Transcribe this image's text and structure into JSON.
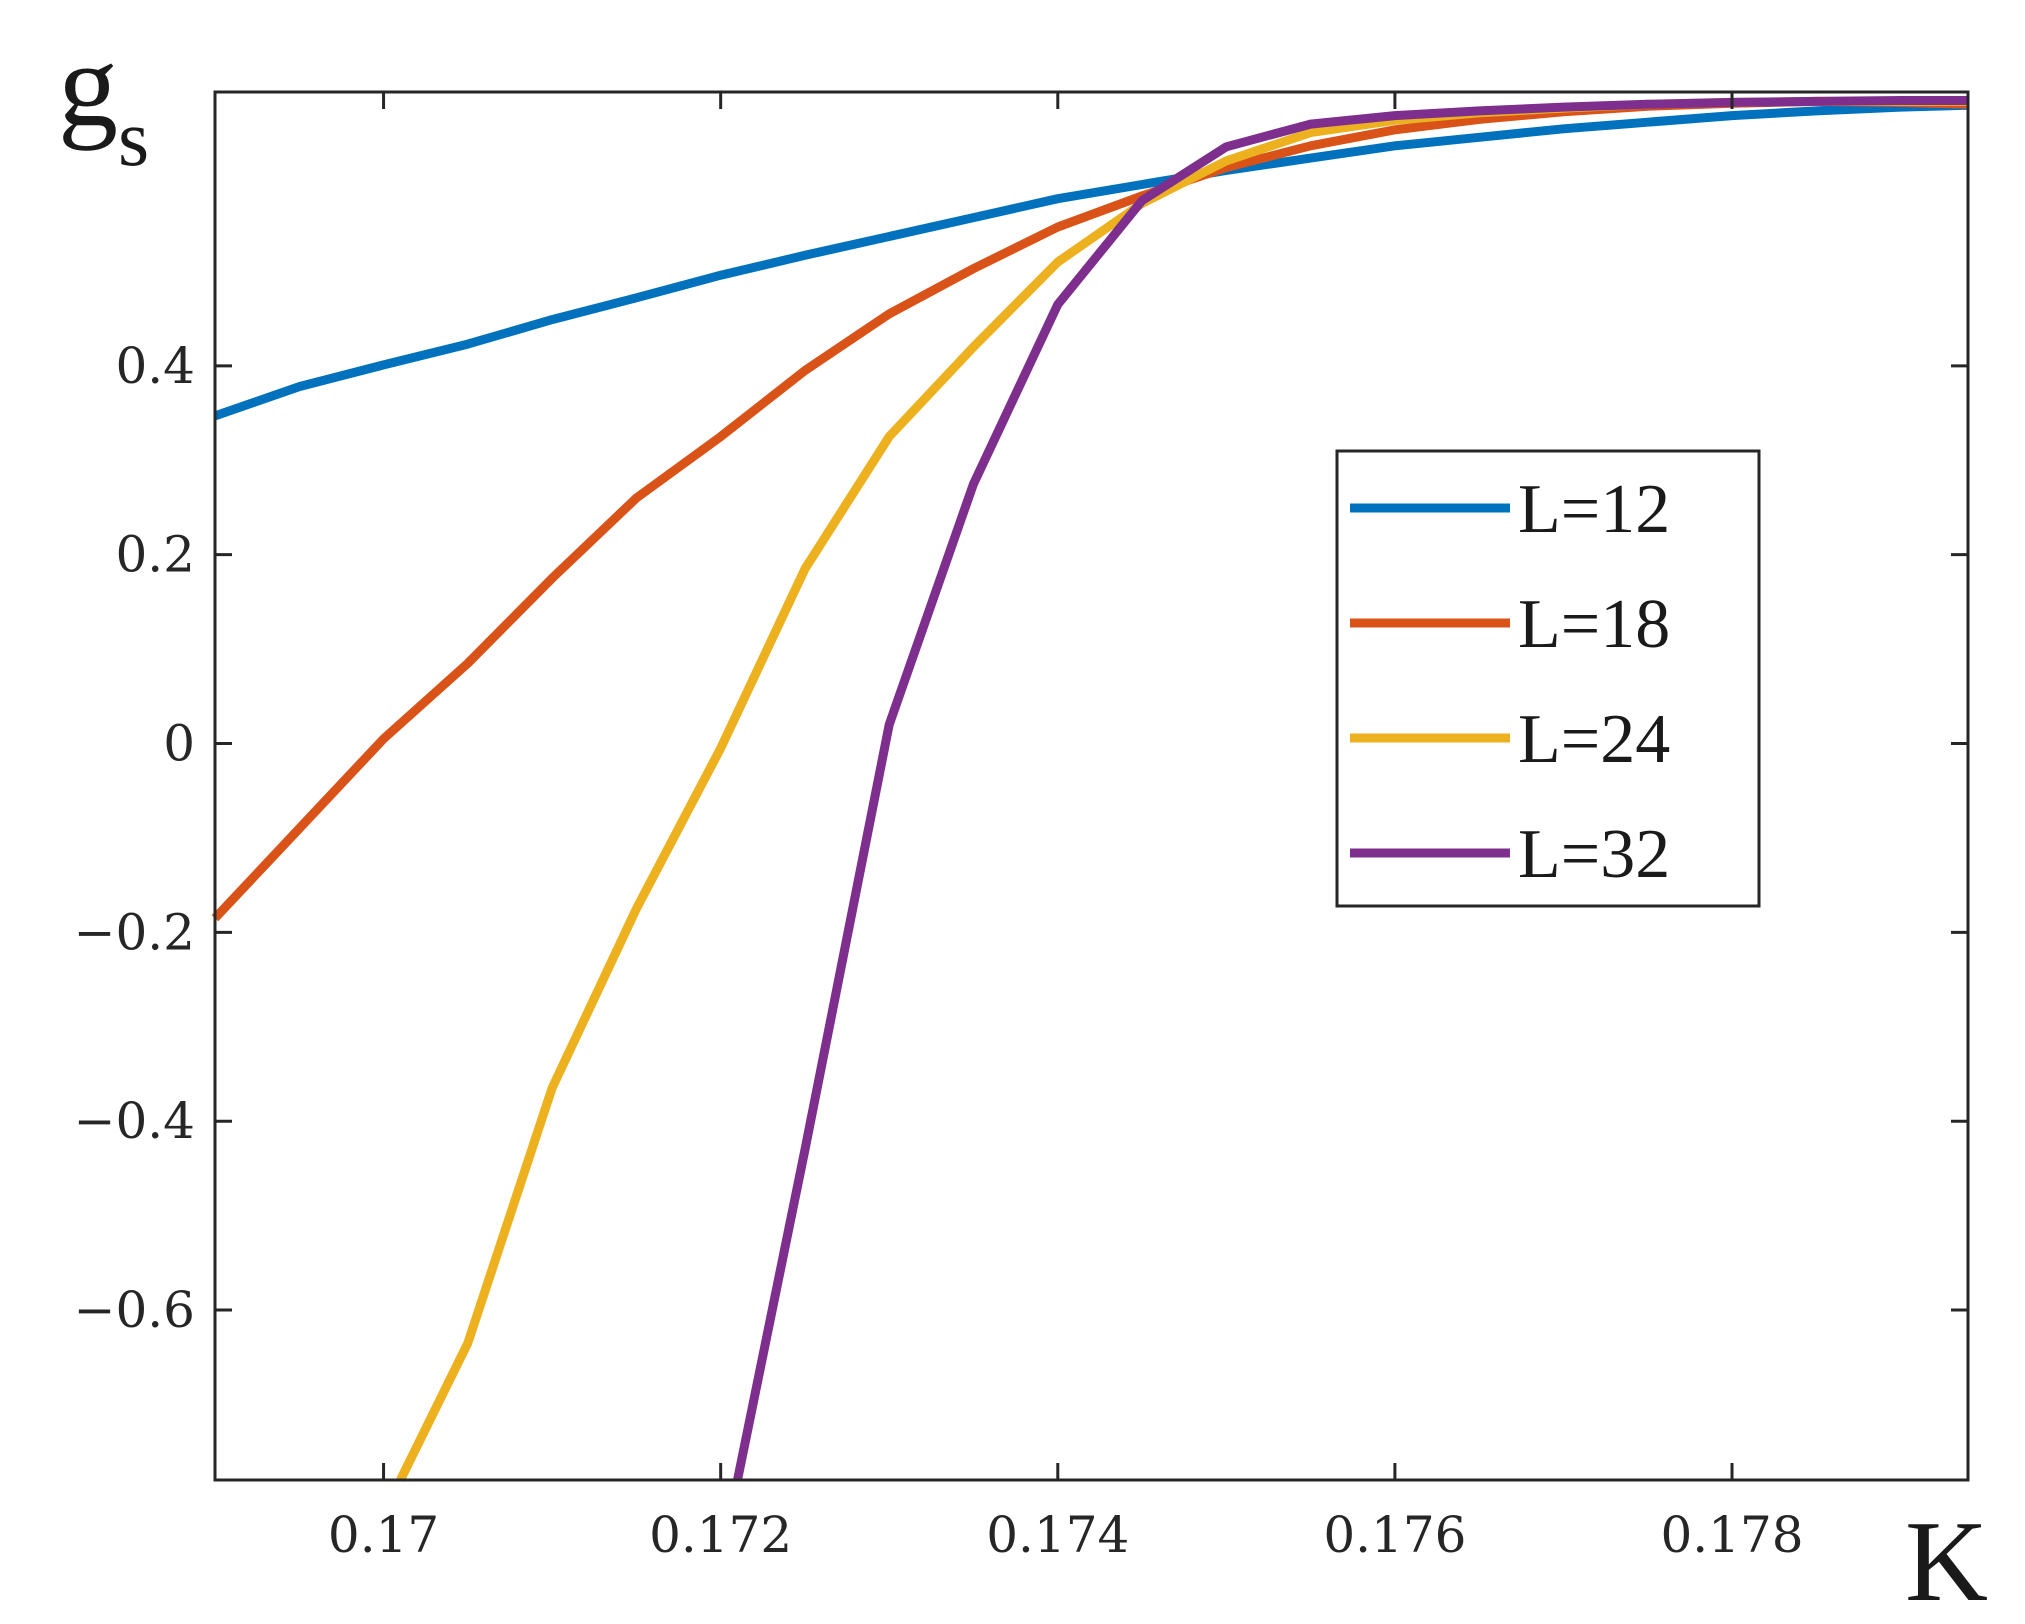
{
  "chart_data": {
    "type": "line",
    "xlabel": "K",
    "ylabel_main": "g",
    "ylabel_sub": "s",
    "xlim": [
      0.169,
      0.1794
    ],
    "ylim": [
      -0.78,
      0.69
    ],
    "xticks": [
      0.17,
      0.172,
      0.174,
      0.176,
      0.178
    ],
    "xtick_labels": [
      "0.17",
      "0.172",
      "0.174",
      "0.176",
      "0.178"
    ],
    "yticks": [
      -0.6,
      -0.4,
      -0.2,
      0,
      0.2,
      0.4
    ],
    "ytick_labels": [
      "−0.6",
      "−0.4",
      "−0.2",
      "0",
      "0.2",
      "0.4"
    ],
    "grid": false,
    "legend_position": "right",
    "series": [
      {
        "name": "L=12",
        "color": "#0072BD",
        "x": [
          0.169,
          0.1695,
          0.17,
          0.1705,
          0.171,
          0.1715,
          0.172,
          0.1725,
          0.173,
          0.1735,
          0.174,
          0.1745,
          0.175,
          0.1755,
          0.176,
          0.1765,
          0.177,
          0.1775,
          0.178,
          0.1785,
          0.179,
          0.1794
        ],
        "y": [
          0.347,
          0.378,
          0.401,
          0.423,
          0.449,
          0.472,
          0.496,
          0.517,
          0.537,
          0.557,
          0.577,
          0.592,
          0.607,
          0.62,
          0.633,
          0.642,
          0.651,
          0.658,
          0.665,
          0.67,
          0.674,
          0.676
        ]
      },
      {
        "name": "L=18",
        "color": "#D95319",
        "x": [
          0.169,
          0.1695,
          0.17,
          0.1705,
          0.171,
          0.1715,
          0.172,
          0.1725,
          0.173,
          0.1735,
          0.174,
          0.1745,
          0.175,
          0.1755,
          0.176,
          0.1765,
          0.177,
          0.1775,
          0.178,
          0.1785,
          0.179,
          0.1794
        ],
        "y": [
          -0.185,
          -0.09,
          0.005,
          0.085,
          0.175,
          0.26,
          0.325,
          0.395,
          0.455,
          0.503,
          0.547,
          0.58,
          0.61,
          0.633,
          0.65,
          0.661,
          0.669,
          0.675,
          0.678,
          0.68,
          0.679,
          0.677
        ]
      },
      {
        "name": "L=24",
        "color": "#EDB120",
        "x": [
          0.1701,
          0.1705,
          0.171,
          0.1715,
          0.172,
          0.1725,
          0.173,
          0.1735,
          0.174,
          0.1745,
          0.175,
          0.1755,
          0.176,
          0.1765,
          0.177,
          0.1775,
          0.178,
          0.1785,
          0.179,
          0.1794
        ],
        "y": [
          -0.78,
          -0.635,
          -0.365,
          -0.175,
          -0.005,
          0.185,
          0.325,
          0.42,
          0.51,
          0.572,
          0.617,
          0.647,
          0.66,
          0.668,
          0.673,
          0.677,
          0.679,
          0.68,
          0.68,
          0.68
        ]
      },
      {
        "name": "L=32",
        "color": "#7E2F8E",
        "x": [
          0.1721,
          0.1725,
          0.173,
          0.1735,
          0.174,
          0.1745,
          0.175,
          0.1755,
          0.176,
          0.1765,
          0.177,
          0.1775,
          0.178,
          0.1785,
          0.179,
          0.1794
        ],
        "y": [
          -0.78,
          -0.43,
          0.02,
          0.275,
          0.465,
          0.575,
          0.632,
          0.656,
          0.665,
          0.67,
          0.674,
          0.677,
          0.679,
          0.68,
          0.681,
          0.681
        ]
      }
    ]
  }
}
